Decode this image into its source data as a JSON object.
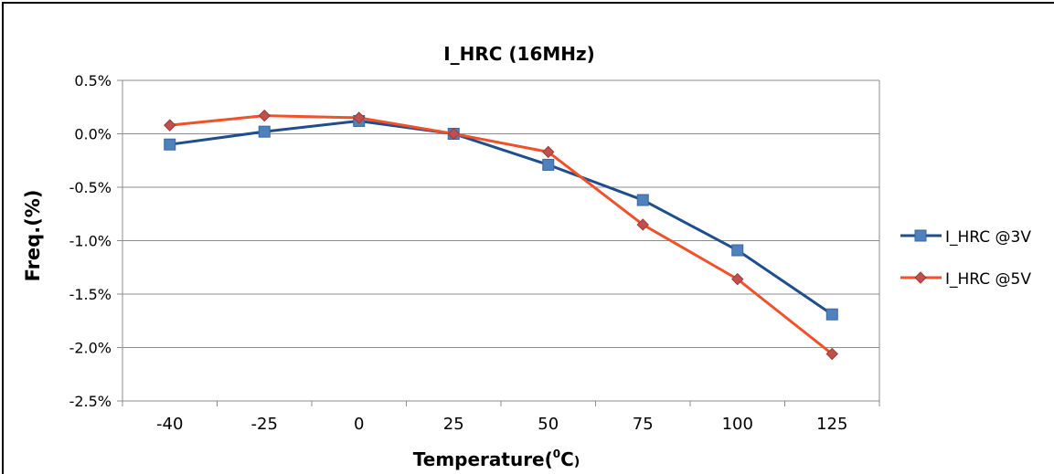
{
  "chart_data": {
    "type": "line",
    "title": "I_HRC (16MHz)",
    "xlabel_main": "Temperature(",
    "xlabel_sup": "0",
    "xlabel_end": "C",
    "xlabel_paren": ")",
    "ylabel": "Freq.(%)",
    "categories": [
      "-40",
      "-25",
      "0",
      "25",
      "50",
      "75",
      "100",
      "125"
    ],
    "y_ticks": [
      "0.5%",
      "0.0%",
      "-0.5%",
      "-1.0%",
      "-1.5%",
      "-2.0%",
      "-2.5%"
    ],
    "y_tick_values": [
      0.5,
      0.0,
      -0.5,
      -1.0,
      -1.5,
      -2.0,
      -2.5
    ],
    "ylim": [
      -2.5,
      0.5
    ],
    "grid": true,
    "legend_position": "right",
    "series": [
      {
        "name": "I_HRC @3V",
        "color": "#1f4e8c",
        "marker": "square",
        "marker_color": "#4f81bd",
        "values": [
          -0.1,
          0.02,
          0.12,
          0.0,
          -0.29,
          -0.62,
          -1.09,
          -1.69
        ]
      },
      {
        "name": "I_HRC @5V",
        "color": "#f0502a",
        "marker": "diamond",
        "marker_color": "#c0504d",
        "values": [
          0.08,
          0.17,
          0.15,
          0.0,
          -0.17,
          -0.85,
          -1.36,
          -2.06
        ]
      }
    ]
  }
}
